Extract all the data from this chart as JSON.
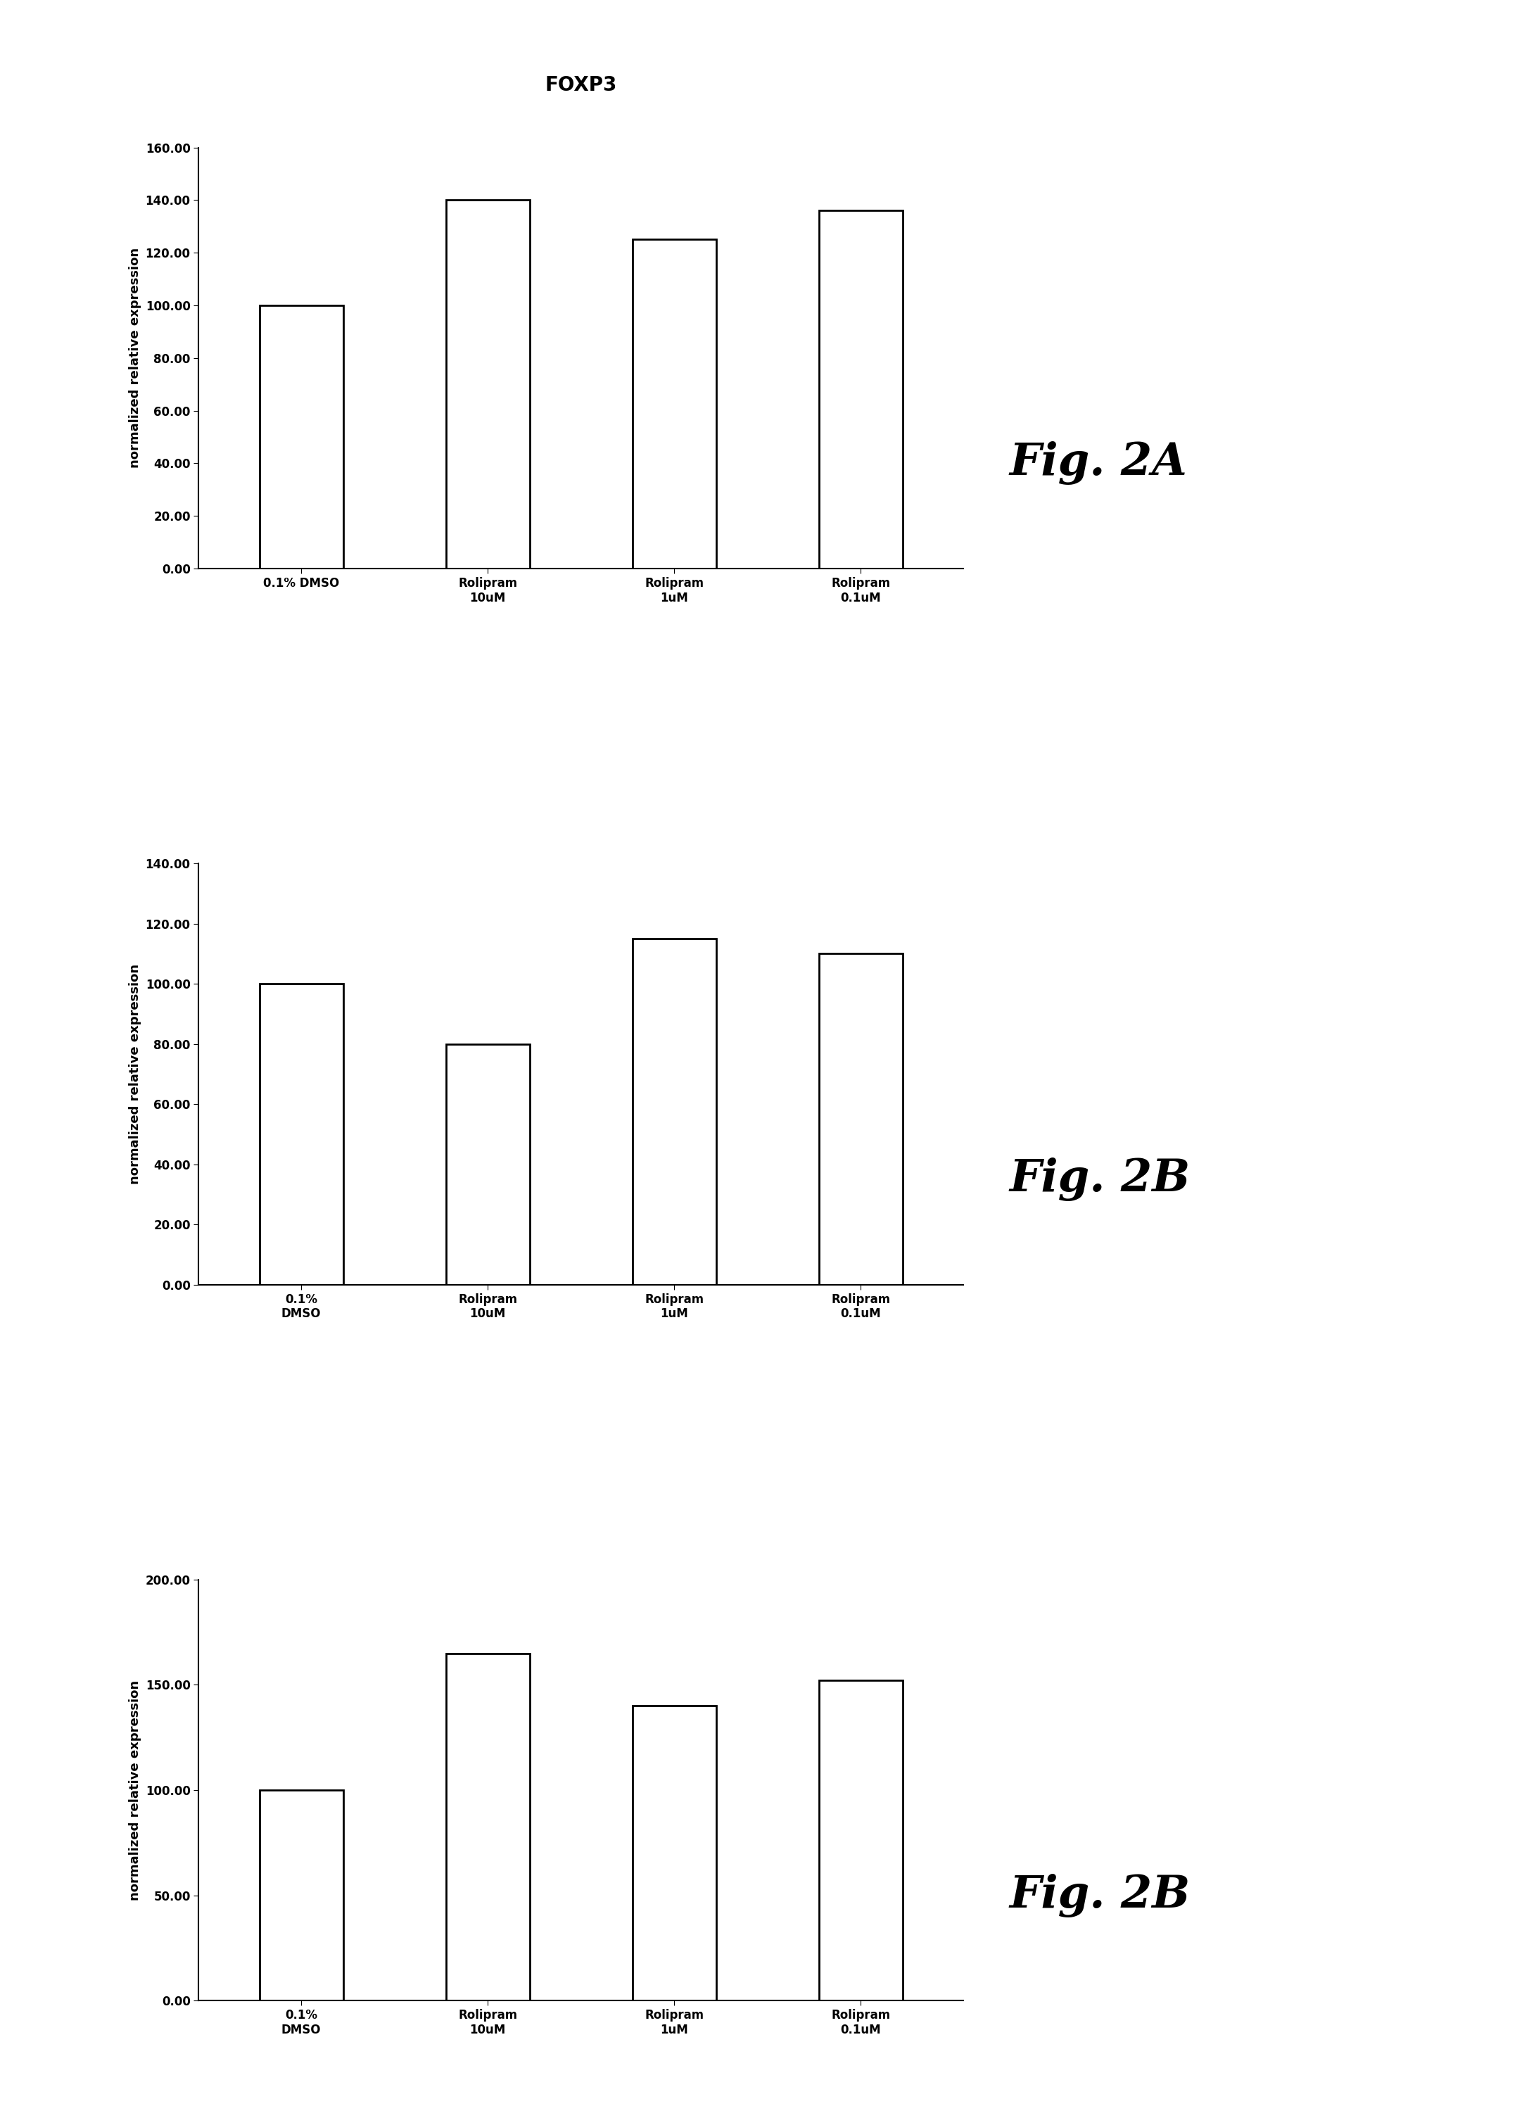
{
  "title": "FOXP3",
  "charts": [
    {
      "fig_label": "Fig. 2A",
      "values": [
        100,
        140,
        125,
        136
      ],
      "ylim": [
        0,
        160
      ],
      "yticks": [
        0.0,
        20.0,
        40.0,
        60.0,
        80.0,
        100.0,
        120.0,
        140.0,
        160.0
      ],
      "categories": [
        "0.1% DMSO",
        "Rolipram\n10uM",
        "Rolipram\n1uM",
        "Rolipram\n0.1uM"
      ]
    },
    {
      "fig_label": "Fig. 2B",
      "values": [
        100,
        80,
        115,
        110
      ],
      "ylim": [
        0,
        140
      ],
      "yticks": [
        0.0,
        20.0,
        40.0,
        60.0,
        80.0,
        100.0,
        120.0,
        140.0
      ],
      "categories": [
        "0.1%\nDMSO",
        "Rolipram\n10uM",
        "Rolipram\n1uM",
        "Rolipram\n0.1uM"
      ]
    },
    {
      "fig_label": "Fig. 2B",
      "values": [
        100,
        165,
        140,
        152
      ],
      "ylim": [
        0,
        200
      ],
      "yticks": [
        0.0,
        50.0,
        100.0,
        150.0,
        200.0
      ],
      "categories": [
        "0.1%\nDMSO",
        "Rolipram\n10uM",
        "Rolipram\n1uM",
        "Rolipram\n0.1uM"
      ]
    }
  ],
  "bar_color": "white",
  "bar_edgecolor": "black",
  "bar_linewidth": 2.0,
  "background_color": "white",
  "ylabel": "normalized relative expression",
  "title_fontsize": 20,
  "label_fontsize": 13,
  "tick_fontsize": 12,
  "fig_label_fontsize": 46,
  "fig_label_style": "italic"
}
